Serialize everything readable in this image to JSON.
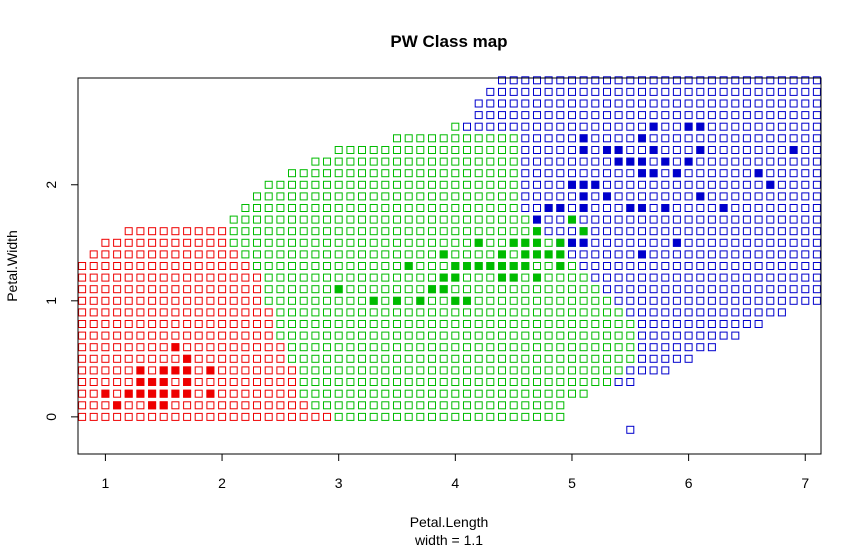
{
  "chart_data": {
    "type": "scatter",
    "title": "PW Class map",
    "xlabel": "Petal.Length",
    "subtitle": "width = 1.1",
    "ylabel": "Petal.Width",
    "xlim": [
      0.765,
      7.135
    ],
    "ylim": [
      -0.32,
      2.92
    ],
    "xticks": [
      "1",
      "2",
      "3",
      "4",
      "5",
      "6",
      "7"
    ],
    "yticks": [
      "0",
      "1",
      "2"
    ],
    "grid": false,
    "colors": {
      "setosa": "#ee0000",
      "versicolor": "#00bb00",
      "virginica": "#0000cc"
    },
    "class_map": {
      "x_start": 0.8,
      "x_step": 0.1,
      "y_start": 0.0,
      "y_step": 0.1,
      "bands": [
        {
          "y": 0.0,
          "from": 0.8,
          "r": 2.9,
          "g": 4.9
        },
        {
          "y": 0.1,
          "from": 0.8,
          "r": 2.7,
          "g": 4.9
        },
        {
          "y": 0.2,
          "from": 0.8,
          "r": 2.6,
          "g": 5.1
        },
        {
          "y": 0.3,
          "from": 0.8,
          "r": 2.6,
          "g": 5.3,
          "b": 5.5
        },
        {
          "y": 0.4,
          "from": 0.8,
          "r": 2.6,
          "g": 5.4,
          "b": 5.8
        },
        {
          "y": 0.5,
          "from": 0.8,
          "r": 2.5,
          "g": 5.5,
          "b": 6.0
        },
        {
          "y": 0.6,
          "from": 0.8,
          "r": 2.5,
          "g": 5.5,
          "b": 6.2
        },
        {
          "y": 0.7,
          "from": 0.8,
          "r": 2.4,
          "g": 5.5,
          "b": 6.4
        },
        {
          "y": 0.8,
          "from": 0.8,
          "r": 2.4,
          "g": 5.5,
          "b": 6.6
        },
        {
          "y": 0.9,
          "from": 0.8,
          "r": 2.4,
          "g": 5.4,
          "b": 6.8
        },
        {
          "y": 1.0,
          "from": 0.8,
          "r": 2.3,
          "g": 5.3,
          "b": 7.1
        },
        {
          "y": 1.1,
          "from": 0.8,
          "r": 2.3,
          "g": 5.2,
          "b": 7.1
        },
        {
          "y": 1.2,
          "from": 0.8,
          "r": 2.3,
          "g": 5.1,
          "b": 7.1
        },
        {
          "y": 1.3,
          "from": 0.8,
          "r": 2.2,
          "g": 5.0,
          "b": 7.1
        },
        {
          "y": 1.4,
          "from": 0.9,
          "r": 2.1,
          "g": 4.9,
          "b": 7.1
        },
        {
          "y": 1.5,
          "from": 1.0,
          "r": 2.0,
          "g": 4.8,
          "b": 7.1
        },
        {
          "y": 1.6,
          "from": 1.2,
          "r": 2.0,
          "g": 4.7,
          "b": 7.1
        },
        {
          "y": 1.7,
          "from": 2.1,
          "g": 4.6,
          "b": 7.1
        },
        {
          "y": 1.8,
          "from": 2.2,
          "g": 4.5,
          "b": 7.1
        },
        {
          "y": 1.9,
          "from": 2.3,
          "g": 4.5,
          "b": 7.1
        },
        {
          "y": 2.0,
          "from": 2.4,
          "g": 4.5,
          "b": 7.1
        },
        {
          "y": 2.1,
          "from": 2.6,
          "g": 4.5,
          "b": 7.1
        },
        {
          "y": 2.2,
          "from": 2.8,
          "g": 4.5,
          "b": 7.1
        },
        {
          "y": 2.3,
          "from": 3.0,
          "g": 4.5,
          "b": 7.1
        },
        {
          "y": 2.4,
          "from": 3.5,
          "g": 4.5,
          "b": 7.1
        },
        {
          "y": 2.5,
          "from": 4.0,
          "g": 4.0,
          "b": 7.1
        },
        {
          "y": 2.6,
          "from": 4.2,
          "b": 7.1
        },
        {
          "y": 2.7,
          "from": 4.2,
          "b": 7.1
        },
        {
          "y": 2.8,
          "from": 4.3,
          "b": 7.1
        },
        {
          "y": 2.9,
          "from": 4.4,
          "b": 7.1
        }
      ]
    },
    "series": [
      {
        "class": "setosa",
        "points": [
          [
            1.1,
            0.1
          ],
          [
            1.4,
            0.1
          ],
          [
            1.5,
            0.1
          ],
          [
            1.0,
            0.2
          ],
          [
            1.2,
            0.2
          ],
          [
            1.3,
            0.2
          ],
          [
            1.4,
            0.2
          ],
          [
            1.5,
            0.2
          ],
          [
            1.6,
            0.2
          ],
          [
            1.7,
            0.2
          ],
          [
            1.9,
            0.2
          ],
          [
            1.3,
            0.3
          ],
          [
            1.4,
            0.3
          ],
          [
            1.5,
            0.3
          ],
          [
            1.7,
            0.3
          ],
          [
            1.3,
            0.4
          ],
          [
            1.5,
            0.4
          ],
          [
            1.6,
            0.4
          ],
          [
            1.7,
            0.4
          ],
          [
            1.9,
            0.4
          ],
          [
            1.7,
            0.5
          ],
          [
            1.6,
            0.6
          ]
        ]
      },
      {
        "class": "versicolor",
        "points": [
          [
            3.5,
            1.0
          ],
          [
            3.3,
            1.0
          ],
          [
            3.7,
            1.0
          ],
          [
            4.0,
            1.0
          ],
          [
            4.1,
            1.0
          ],
          [
            3.0,
            1.1
          ],
          [
            3.8,
            1.1
          ],
          [
            3.9,
            1.1
          ],
          [
            3.9,
            1.2
          ],
          [
            4.0,
            1.2
          ],
          [
            4.4,
            1.2
          ],
          [
            4.5,
            1.2
          ],
          [
            4.7,
            1.2
          ],
          [
            3.6,
            1.3
          ],
          [
            4.0,
            1.3
          ],
          [
            4.1,
            1.3
          ],
          [
            4.2,
            1.3
          ],
          [
            4.3,
            1.3
          ],
          [
            4.4,
            1.3
          ],
          [
            4.5,
            1.3
          ],
          [
            4.6,
            1.3
          ],
          [
            4.9,
            1.3
          ],
          [
            3.9,
            1.4
          ],
          [
            4.4,
            1.4
          ],
          [
            4.6,
            1.4
          ],
          [
            4.7,
            1.4
          ],
          [
            4.8,
            1.4
          ],
          [
            4.9,
            1.4
          ],
          [
            4.2,
            1.5
          ],
          [
            4.5,
            1.5
          ],
          [
            4.6,
            1.5
          ],
          [
            4.7,
            1.5
          ],
          [
            4.9,
            1.5
          ],
          [
            5.0,
            1.5
          ],
          [
            4.7,
            1.6
          ],
          [
            5.1,
            1.6
          ],
          [
            5.0,
            1.7
          ],
          [
            4.8,
            1.8
          ]
        ]
      },
      {
        "class": "virginica",
        "points": [
          [
            5.0,
            1.5
          ],
          [
            5.1,
            1.5
          ],
          [
            5.6,
            1.4
          ],
          [
            5.9,
            1.5
          ],
          [
            4.7,
            1.7
          ],
          [
            4.8,
            1.8
          ],
          [
            4.9,
            1.8
          ],
          [
            5.1,
            1.8
          ],
          [
            5.5,
            1.8
          ],
          [
            5.6,
            1.8
          ],
          [
            5.8,
            1.8
          ],
          [
            6.3,
            1.8
          ],
          [
            5.1,
            1.9
          ],
          [
            5.3,
            1.9
          ],
          [
            6.1,
            1.9
          ],
          [
            5.0,
            2.0
          ],
          [
            5.1,
            2.0
          ],
          [
            5.2,
            2.0
          ],
          [
            6.7,
            2.0
          ],
          [
            5.6,
            2.1
          ],
          [
            5.7,
            2.1
          ],
          [
            5.9,
            2.1
          ],
          [
            6.6,
            2.1
          ],
          [
            5.4,
            2.2
          ],
          [
            5.5,
            2.2
          ],
          [
            5.6,
            2.2
          ],
          [
            5.8,
            2.2
          ],
          [
            6.0,
            2.2
          ],
          [
            5.1,
            2.3
          ],
          [
            5.3,
            2.3
          ],
          [
            5.4,
            2.3
          ],
          [
            5.7,
            2.3
          ],
          [
            6.1,
            2.3
          ],
          [
            6.9,
            2.3
          ],
          [
            5.1,
            2.4
          ],
          [
            5.6,
            2.4
          ],
          [
            5.7,
            2.5
          ],
          [
            6.0,
            2.5
          ],
          [
            6.1,
            2.5
          ]
        ]
      }
    ]
  }
}
